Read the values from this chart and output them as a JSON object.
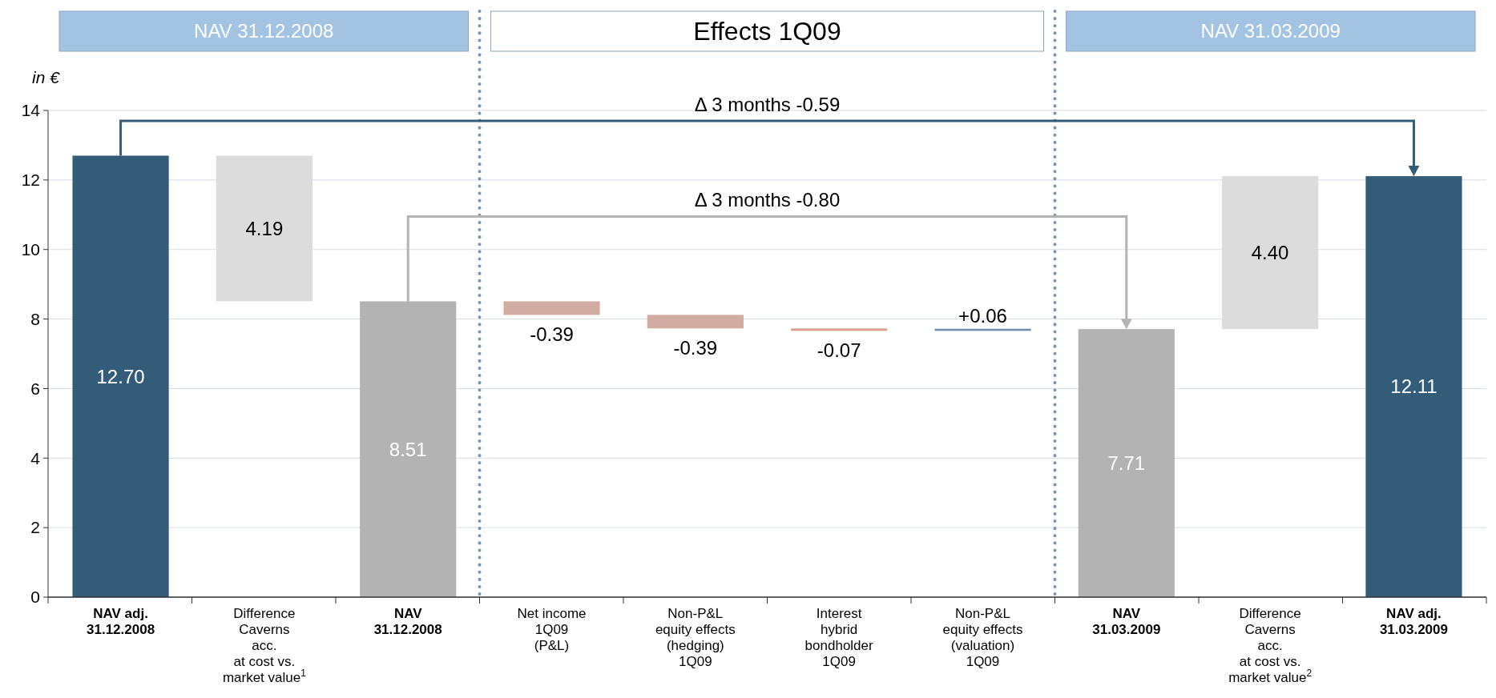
{
  "chart_data": {
    "type": "bar",
    "title": "Effects 1Q09",
    "ylabel": "in €",
    "categories": [
      "NAV adj.\n31.12.2008",
      "Difference\nCaverns\nacc.\nat cost vs.\nmarket value$^{1}$",
      "NAV\n31.12.2008",
      "Net income\n1Q09\n(P&L)",
      "Non-P&L\nequity effects\n(hedging)\n1Q09",
      "Interest\nhybrid\nbondholder\n1Q09",
      "Non-P&L\nequity effects\n(valuation)\n1Q09",
      "NAV\n31.03.2009",
      "Difference\nCaverns\nacc.\nat cost vs.\nmarket value$^{2}$",
      "NAV adj.\n31.03.2009"
    ],
    "values": [
      12.7,
      4.19,
      8.51,
      -0.39,
      -0.39,
      -0.07,
      0.06,
      7.71,
      4.4,
      12.11
    ],
    "base": [
      0,
      8.51,
      0,
      8.51,
      8.12,
      7.73,
      7.66,
      0,
      7.71,
      0
    ],
    "colors": [
      "#335c78",
      "#dcdcdc",
      "#b3b3b3",
      "#d1aca3",
      "#d1aca3",
      "#e0a090",
      "#6e8fae",
      "#b3b3b3",
      "#dcdcdc",
      "#335c78"
    ],
    "value_labels": [
      "12.70",
      "4.19",
      "8.51",
      "-0.39",
      "-0.39",
      "-0.07",
      "+0.06",
      "7.71",
      "4.40",
      "12.11"
    ],
    "annotations": [
      "NAV 31.12.2008",
      "NAV 31.03.2009",
      "Δ 3 months -0.59",
      "Δ 3 months -0.80"
    ],
    "ylim": [
      0,
      14
    ],
    "yticks": [
      0,
      2,
      4,
      6,
      8,
      10,
      12,
      14
    ],
    "grid": "y"
  }
}
